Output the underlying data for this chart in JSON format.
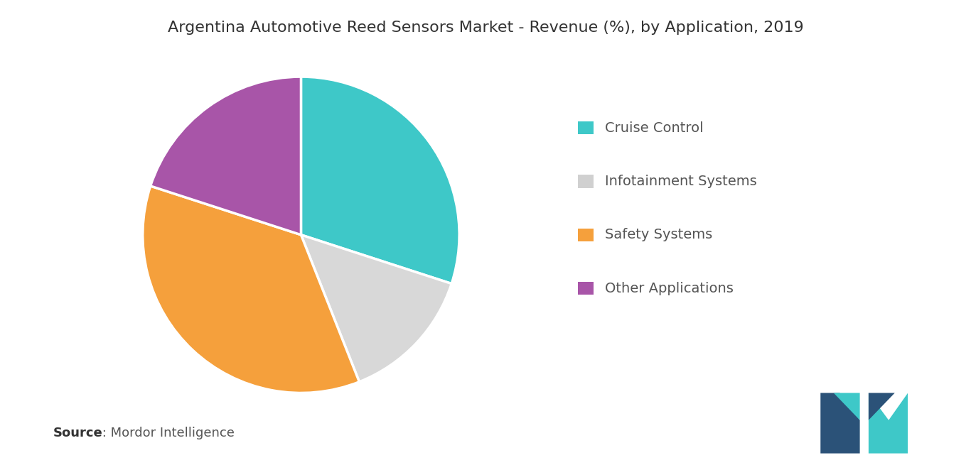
{
  "title": "Argentina Automotive Reed Sensors Market - Revenue (%), by Application, 2019",
  "labels": [
    "Cruise Control",
    "Infotainment Systems",
    "Safety Systems",
    "Other Applications"
  ],
  "sizes": [
    30,
    14,
    36,
    20
  ],
  "colors": [
    "#3EC8C8",
    "#D8D8D8",
    "#F5A03C",
    "#A855A8"
  ],
  "legend_colors": [
    "#3EC8C8",
    "#D0D0D0",
    "#F5A03C",
    "#A855A8"
  ],
  "startangle": 90,
  "background_color": "#ffffff",
  "title_fontsize": 16,
  "legend_fontsize": 14,
  "source_bold": "Source",
  "source_normal": " : Mordor Intelligence",
  "source_fontsize": 13,
  "logo_dark": "#2B5278",
  "logo_teal": "#3EC8C8"
}
